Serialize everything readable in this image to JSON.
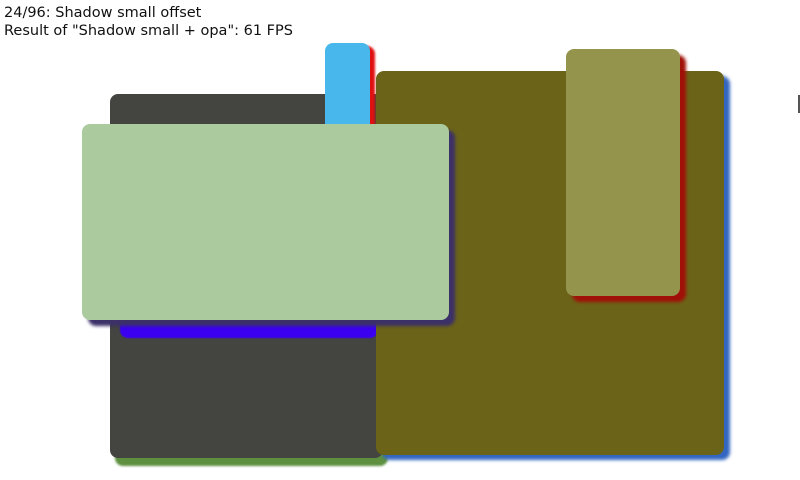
{
  "header": {
    "scene_title": "24/96: Shadow small offset",
    "result_text": "Result of \"Shadow small + opa\": 61 FPS"
  },
  "colors": {
    "dark_rect": "#444540",
    "dark_rect_shadow": "#5e9040",
    "hidden_shadow": "#3b00f0",
    "cyan_rect": "#48b8ec",
    "cyan_rect_shadow": "#e01010",
    "olive_rect": "#6b6418",
    "olive_rect_shadow": "#3366c0",
    "green_rect": "#abcb9f",
    "green_rect_shadow": "#3c3068",
    "khaki_rect": "#94944c",
    "khaki_rect_shadow": "#a01008"
  }
}
